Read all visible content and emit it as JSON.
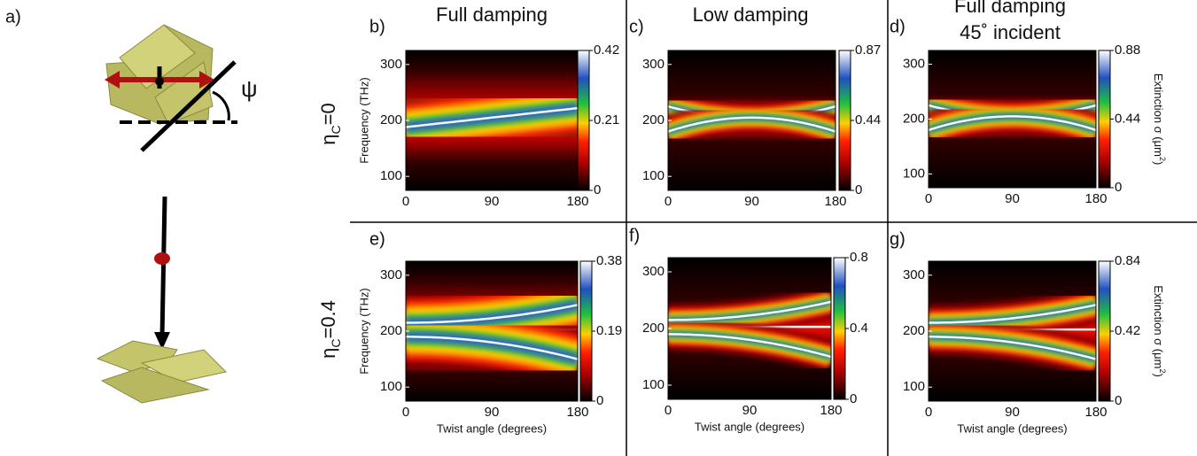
{
  "figure_label": "a)",
  "psi": "ψ",
  "row_labels": [
    [
      "η",
      "C",
      "=0"
    ],
    [
      "η",
      "C",
      "=0.4"
    ]
  ],
  "column_titles": [
    [
      "Full damping"
    ],
    [
      "Low damping"
    ],
    [
      "Full damping",
      "45˚ incident"
    ]
  ],
  "panels": [
    {
      "label": "b)",
      "ylabel": "Frequency (THz)",
      "yticks": [
        "300",
        "200",
        "100"
      ],
      "xticks": [
        "0",
        "90",
        "180"
      ],
      "cbar_ticks": [
        "0.42",
        "0.21",
        "0"
      ]
    },
    {
      "label": "c)",
      "yticks": [
        "300",
        "200",
        "100"
      ],
      "xticks": [
        "0",
        "90",
        "180"
      ],
      "cbar_ticks": [
        "0.87",
        "0.44",
        "0"
      ]
    },
    {
      "label": "d)",
      "yticks": [
        "300",
        "200",
        "100"
      ],
      "xticks": [
        "0",
        "90",
        "180"
      ],
      "cbar_ticks": [
        "0.88",
        "0.44",
        "0"
      ],
      "cbar_label": [
        "Extinction σ (μm",
        "2",
        ")"
      ]
    },
    {
      "label": "e)",
      "ylabel": "Frequency (THz)",
      "xlabel": "Twist angle (degrees)",
      "yticks": [
        "300",
        "200",
        "100"
      ],
      "xticks": [
        "0",
        "90",
        "180"
      ],
      "cbar_ticks": [
        "0.38",
        "0.19",
        "0"
      ]
    },
    {
      "label": "f)",
      "xlabel": "Twist angle (degrees)",
      "yticks": [
        "300",
        "200",
        "100"
      ],
      "xticks": [
        "0",
        "90",
        "180"
      ],
      "cbar_ticks": [
        "0.8",
        "0.4",
        "0"
      ]
    },
    {
      "label": "g)",
      "xlabel": "Twist angle (degrees)",
      "yticks": [
        "300",
        "200",
        "100"
      ],
      "xticks": [
        "0",
        "90",
        "180"
      ],
      "cbar_ticks": [
        "0.84",
        "0.42",
        "0"
      ],
      "cbar_label": [
        "Extinction σ (μm",
        "2",
        ")"
      ]
    }
  ]
}
